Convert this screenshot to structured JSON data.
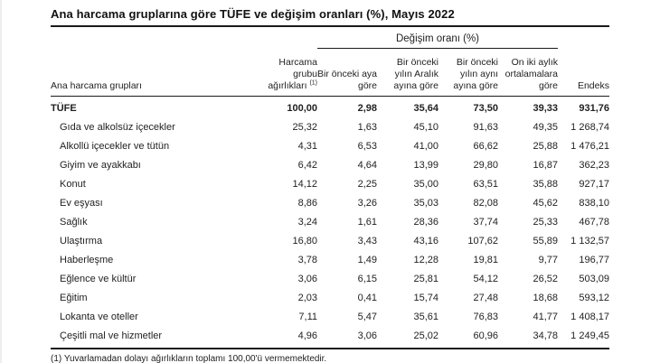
{
  "title": "Ana harcama gruplarına göre TÜFE ve değişim oranları (%), Mayıs 2022",
  "table": {
    "change_rate_header": "Değişim oranı (%)",
    "columns": [
      {
        "label": "Ana harcama grupları"
      },
      {
        "line1": "Harcama",
        "line2": "grubu",
        "line3": "ağırlıkları",
        "sup": "(1)"
      },
      {
        "label": "Bir önceki aya göre"
      },
      {
        "label": "Bir önceki yılın Aralık ayına göre"
      },
      {
        "label": "Bir önceki yılın aynı ayına göre"
      },
      {
        "label": "On iki aylık ortalamalara göre"
      },
      {
        "label": "Endeks"
      }
    ],
    "rows": [
      {
        "label": "TÜFE",
        "bold": true,
        "values": [
          "100,00",
          "2,98",
          "35,64",
          "73,50",
          "39,33",
          "931,76"
        ]
      },
      {
        "label": "Gıda ve alkolsüz içecekler",
        "values": [
          "25,32",
          "1,63",
          "45,10",
          "91,63",
          "49,35",
          "1 268,74"
        ]
      },
      {
        "label": "Alkollü içecekler ve tütün",
        "values": [
          "4,31",
          "6,53",
          "41,00",
          "66,62",
          "25,88",
          "1 476,21"
        ]
      },
      {
        "label": "Giyim ve ayakkabı",
        "values": [
          "6,42",
          "4,64",
          "13,99",
          "29,80",
          "16,87",
          "362,23"
        ]
      },
      {
        "label": "Konut",
        "values": [
          "14,12",
          "2,25",
          "35,00",
          "63,51",
          "35,88",
          "927,17"
        ]
      },
      {
        "label": "Ev eşyası",
        "values": [
          "8,86",
          "3,26",
          "35,03",
          "82,08",
          "45,62",
          "838,10"
        ]
      },
      {
        "label": "Sağlık",
        "values": [
          "3,24",
          "1,61",
          "28,36",
          "37,74",
          "25,33",
          "467,78"
        ]
      },
      {
        "label": "Ulaştırma",
        "values": [
          "16,80",
          "3,43",
          "43,16",
          "107,62",
          "55,89",
          "1 132,57"
        ]
      },
      {
        "label": "Haberleşme",
        "values": [
          "3,78",
          "1,49",
          "12,28",
          "19,81",
          "9,77",
          "196,77"
        ]
      },
      {
        "label": "Eğlence ve kültür",
        "values": [
          "3,06",
          "6,15",
          "25,81",
          "54,12",
          "26,52",
          "503,09"
        ]
      },
      {
        "label": "Eğitim",
        "values": [
          "2,03",
          "0,41",
          "15,74",
          "27,48",
          "18,68",
          "593,12"
        ]
      },
      {
        "label": "Lokanta ve oteller",
        "values": [
          "7,11",
          "5,47",
          "35,61",
          "76,83",
          "41,77",
          "1 408,17"
        ]
      },
      {
        "label": "Çeşitli mal ve hizmetler",
        "values": [
          "4,96",
          "3,06",
          "25,02",
          "60,96",
          "34,78",
          "1 249,45"
        ]
      }
    ],
    "footnote": "(1) Yuvarlamadan dolayı ağırlıkların toplamı 100,00'ü vermemektedir."
  },
  "colors": {
    "background": "#ffffff",
    "text": "#222222",
    "line": "#1a1a1a"
  }
}
